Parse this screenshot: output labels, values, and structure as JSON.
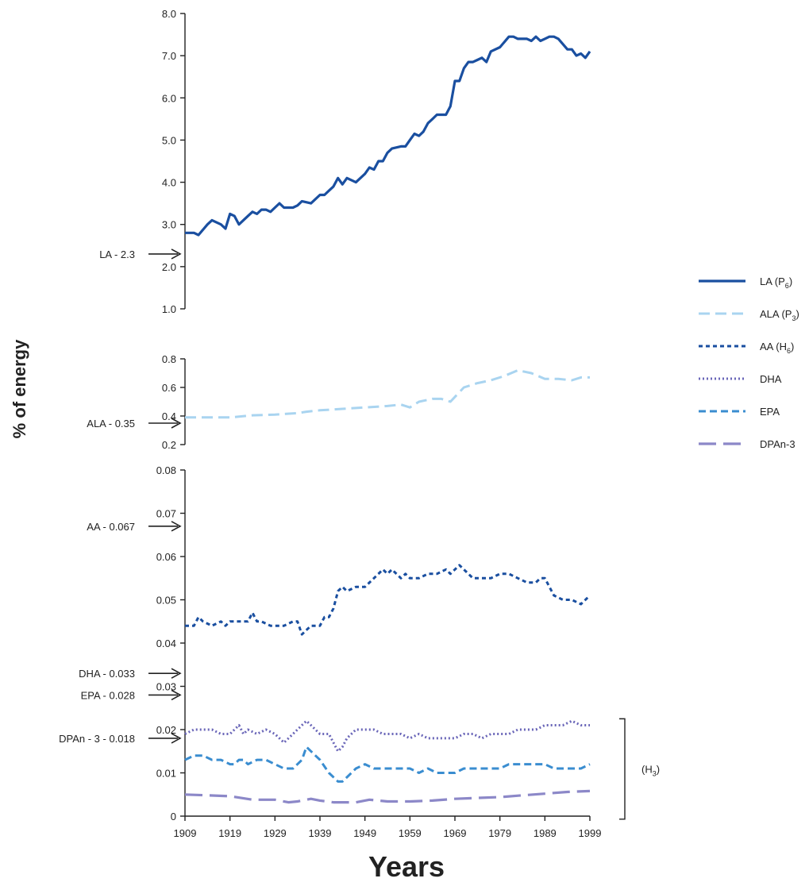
{
  "chart_data": {
    "type": "line",
    "ylabel": "% of energy",
    "xlabel": "Years",
    "x_ticks": [
      "1909",
      "1919",
      "1929",
      "1939",
      "1949",
      "1959",
      "1969",
      "1979",
      "1989",
      "1999"
    ],
    "xlim": [
      1909,
      1999
    ],
    "panels": [
      {
        "ylim": [
          1.0,
          8.0
        ],
        "y_ticks": [
          "1.0",
          "2.0",
          "3.0",
          "4.0",
          "5.0",
          "6.0",
          "7.0",
          "8.0"
        ],
        "reference": {
          "label": "LA - 2.3",
          "value": 2.3
        },
        "series": [
          {
            "name": "LA",
            "subscript": "6",
            "prefix_sub": "(P",
            "color": "#1a4fa0",
            "dash": "",
            "width": 3.2,
            "x": [
              1909,
              1911,
              1912,
              1914,
              1915,
              1917,
              1918,
              1919,
              1920,
              1921,
              1923,
              1924,
              1925,
              1926,
              1927,
              1928,
              1929,
              1930,
              1931,
              1933,
              1934,
              1935,
              1937,
              1939,
              1940,
              1941,
              1942,
              1943,
              1944,
              1945,
              1947,
              1949,
              1950,
              1951,
              1952,
              1953,
              1954,
              1955,
              1957,
              1958,
              1959,
              1960,
              1961,
              1962,
              1963,
              1964,
              1965,
              1967,
              1968,
              1969,
              1970,
              1971,
              1972,
              1973,
              1974,
              1975,
              1976,
              1977,
              1979,
              1981,
              1982,
              1983,
              1984,
              1985,
              1986,
              1987,
              1988,
              1989,
              1990,
              1991,
              1992,
              1994,
              1995,
              1996,
              1997,
              1998,
              1999
            ],
            "y": [
              2.8,
              2.8,
              2.75,
              3.0,
              3.1,
              3.0,
              2.9,
              3.25,
              3.2,
              3.0,
              3.2,
              3.3,
              3.25,
              3.35,
              3.35,
              3.3,
              3.4,
              3.5,
              3.4,
              3.4,
              3.45,
              3.55,
              3.5,
              3.7,
              3.7,
              3.8,
              3.9,
              4.1,
              3.95,
              4.1,
              4.0,
              4.2,
              4.35,
              4.3,
              4.5,
              4.5,
              4.7,
              4.8,
              4.85,
              4.85,
              5.0,
              5.15,
              5.1,
              5.2,
              5.4,
              5.5,
              5.6,
              5.6,
              5.8,
              6.4,
              6.4,
              6.7,
              6.85,
              6.85,
              6.9,
              6.95,
              6.85,
              7.1,
              7.2,
              7.45,
              7.45,
              7.4,
              7.4,
              7.4,
              7.35,
              7.45,
              7.35,
              7.4,
              7.45,
              7.45,
              7.4,
              7.15,
              7.15,
              7.0,
              7.05,
              6.95,
              7.1
            ]
          }
        ]
      },
      {
        "ylim": [
          0.2,
          0.8
        ],
        "y_ticks": [
          "0.2",
          "0.4",
          "0.6",
          "0.8"
        ],
        "reference": {
          "label": "ALA - 0.35",
          "value": 0.35
        },
        "series": [
          {
            "name": "ALA",
            "subscript": "3",
            "prefix_sub": "(P",
            "color": "#a9d4f0",
            "dash": "14 7",
            "width": 3,
            "x": [
              1909,
              1914,
              1919,
              1924,
              1929,
              1934,
              1936,
              1939,
              1944,
              1949,
              1954,
              1957,
              1959,
              1961,
              1964,
              1966,
              1968,
              1971,
              1974,
              1977,
              1980,
              1983,
              1986,
              1989,
              1992,
              1995,
              1997,
              1999
            ],
            "y": [
              0.39,
              0.39,
              0.39,
              0.405,
              0.41,
              0.42,
              0.43,
              0.44,
              0.45,
              0.46,
              0.47,
              0.48,
              0.46,
              0.5,
              0.52,
              0.52,
              0.5,
              0.6,
              0.63,
              0.65,
              0.68,
              0.72,
              0.7,
              0.66,
              0.66,
              0.65,
              0.67,
              0.67
            ]
          }
        ]
      },
      {
        "ylim": [
          0,
          0.08
        ],
        "y_ticks": [
          "0",
          "0.01",
          "0.02",
          "0.03",
          "0.04",
          "0.05",
          "0.06",
          "0.07",
          "0.08"
        ],
        "references": [
          {
            "label": "AA - 0.067",
            "value": 0.067
          },
          {
            "label": "DHA - 0.033",
            "value": 0.033
          },
          {
            "label": "EPA - 0.028",
            "value": 0.028
          },
          {
            "label": "DPAn - 3 - 0.018",
            "value": 0.018
          }
        ],
        "bracket_label": "(H",
        "bracket_sub": "3",
        "series": [
          {
            "name": "AA",
            "subscript": "6",
            "prefix_sub": "(H",
            "color": "#1a4fa0",
            "dash": "5 4",
            "width": 3,
            "x": [
              1909,
              1911,
              1912,
              1913,
              1915,
              1917,
              1918,
              1919,
              1921,
              1923,
              1924,
              1925,
              1926,
              1928,
              1929,
              1931,
              1933,
              1934,
              1935,
              1936,
              1937,
              1939,
              1940,
              1941,
              1942,
              1943,
              1944,
              1945,
              1947,
              1949,
              1951,
              1953,
              1954,
              1955,
              1957,
              1958,
              1959,
              1961,
              1963,
              1965,
              1967,
              1968,
              1969,
              1970,
              1971,
              1973,
              1974,
              1975,
              1977,
              1979,
              1981,
              1983,
              1985,
              1987,
              1988,
              1989,
              1991,
              1993,
              1995,
              1997,
              1999
            ],
            "y": [
              0.044,
              0.044,
              0.046,
              0.045,
              0.044,
              0.045,
              0.044,
              0.045,
              0.045,
              0.045,
              0.047,
              0.045,
              0.045,
              0.044,
              0.044,
              0.044,
              0.045,
              0.045,
              0.042,
              0.043,
              0.044,
              0.044,
              0.046,
              0.046,
              0.048,
              0.052,
              0.053,
              0.052,
              0.053,
              0.053,
              0.055,
              0.057,
              0.056,
              0.057,
              0.055,
              0.056,
              0.055,
              0.055,
              0.056,
              0.056,
              0.057,
              0.056,
              0.057,
              0.058,
              0.057,
              0.055,
              0.055,
              0.055,
              0.055,
              0.056,
              0.056,
              0.055,
              0.054,
              0.054,
              0.055,
              0.055,
              0.051,
              0.05,
              0.05,
              0.049,
              0.051
            ]
          },
          {
            "name": "DHA",
            "subscript": "",
            "prefix_sub": "",
            "color": "#6a66b8",
            "dash": "2 3",
            "width": 3,
            "x": [
              1909,
              1911,
              1913,
              1915,
              1917,
              1919,
              1920,
              1921,
              1922,
              1923,
              1925,
              1927,
              1929,
              1931,
              1933,
              1935,
              1936,
              1937,
              1939,
              1941,
              1942,
              1943,
              1944,
              1945,
              1947,
              1949,
              1951,
              1953,
              1955,
              1957,
              1959,
              1961,
              1963,
              1965,
              1967,
              1969,
              1971,
              1973,
              1975,
              1977,
              1979,
              1981,
              1983,
              1985,
              1987,
              1989,
              1991,
              1993,
              1995,
              1997,
              1999
            ],
            "y": [
              0.019,
              0.02,
              0.02,
              0.02,
              0.019,
              0.019,
              0.02,
              0.021,
              0.019,
              0.02,
              0.019,
              0.02,
              0.019,
              0.017,
              0.019,
              0.021,
              0.022,
              0.021,
              0.019,
              0.019,
              0.017,
              0.015,
              0.016,
              0.018,
              0.02,
              0.02,
              0.02,
              0.019,
              0.019,
              0.019,
              0.018,
              0.019,
              0.018,
              0.018,
              0.018,
              0.018,
              0.019,
              0.019,
              0.018,
              0.019,
              0.019,
              0.019,
              0.02,
              0.02,
              0.02,
              0.021,
              0.021,
              0.021,
              0.022,
              0.021,
              0.021
            ]
          },
          {
            "name": "EPA",
            "subscript": "",
            "prefix_sub": "",
            "color": "#3a8dd0",
            "dash": "9 5",
            "width": 3,
            "x": [
              1909,
              1911,
              1913,
              1915,
              1917,
              1919,
              1920,
              1921,
              1922,
              1923,
              1925,
              1927,
              1929,
              1931,
              1933,
              1935,
              1936,
              1937,
              1939,
              1941,
              1943,
              1944,
              1945,
              1947,
              1949,
              1951,
              1953,
              1955,
              1957,
              1959,
              1961,
              1963,
              1965,
              1967,
              1969,
              1971,
              1973,
              1975,
              1977,
              1979,
              1981,
              1983,
              1985,
              1987,
              1989,
              1991,
              1993,
              1995,
              1997,
              1999
            ],
            "y": [
              0.013,
              0.014,
              0.014,
              0.013,
              0.013,
              0.012,
              0.012,
              0.013,
              0.013,
              0.012,
              0.013,
              0.013,
              0.012,
              0.011,
              0.011,
              0.013,
              0.016,
              0.015,
              0.013,
              0.01,
              0.008,
              0.008,
              0.009,
              0.011,
              0.012,
              0.011,
              0.011,
              0.011,
              0.011,
              0.011,
              0.01,
              0.011,
              0.01,
              0.01,
              0.01,
              0.011,
              0.011,
              0.011,
              0.011,
              0.011,
              0.012,
              0.012,
              0.012,
              0.012,
              0.012,
              0.011,
              0.011,
              0.011,
              0.011,
              0.012
            ]
          },
          {
            "name": "DPAn-3",
            "subscript": "",
            "prefix_sub": "",
            "color": "#8c88c8",
            "dash": "22 9",
            "width": 3.2,
            "x": [
              1909,
              1914,
              1919,
              1924,
              1929,
              1932,
              1934,
              1937,
              1939,
              1942,
              1944,
              1947,
              1950,
              1954,
              1959,
              1964,
              1969,
              1974,
              1979,
              1984,
              1989,
              1994,
              1999
            ],
            "y": [
              0.005,
              0.0048,
              0.0046,
              0.0038,
              0.0038,
              0.0032,
              0.0034,
              0.004,
              0.0036,
              0.0032,
              0.0032,
              0.0032,
              0.0038,
              0.0034,
              0.0034,
              0.0036,
              0.004,
              0.0042,
              0.0044,
              0.0048,
              0.0052,
              0.0056,
              0.0058
            ]
          }
        ]
      }
    ],
    "legend": {
      "placement": "right",
      "entries": [
        {
          "text": "LA (P",
          "sub": "6",
          "suffix": ")"
        },
        {
          "text": "ALA (P",
          "sub": "3",
          "suffix": ")"
        },
        {
          "text": "AA (H",
          "sub": "6",
          "suffix": ")"
        },
        {
          "text": "DHA",
          "sub": "",
          "suffix": ""
        },
        {
          "text": "EPA",
          "sub": "",
          "suffix": ""
        },
        {
          "text": "DPAn-3",
          "sub": "",
          "suffix": ""
        }
      ]
    }
  }
}
